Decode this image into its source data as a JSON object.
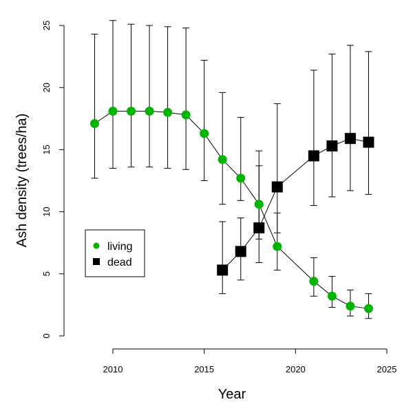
{
  "chart_data": {
    "type": "line",
    "title": "",
    "xlabel": "Year",
    "ylabel": "Ash density (trees/ha)",
    "xlim": [
      2008.5,
      2025
    ],
    "ylim": [
      0,
      25
    ],
    "xticks": [
      "2010",
      "2015",
      "2020",
      "2025"
    ],
    "yticks": [
      "0",
      "5",
      "10",
      "15",
      "20",
      "25"
    ],
    "grid": false,
    "legend_position": "left-middle",
    "series": [
      {
        "name": "living",
        "color": "#00b400",
        "marker": "circle",
        "x": [
          2009,
          2010,
          2011,
          2012,
          2013,
          2014,
          2015,
          2016,
          2017,
          2018,
          2019,
          2021,
          2022,
          2023,
          2024
        ],
        "y": [
          17.1,
          18.1,
          18.1,
          18.1,
          18.0,
          17.8,
          16.3,
          14.2,
          12.7,
          10.6,
          7.2,
          4.4,
          3.2,
          2.4,
          2.2
        ],
        "lower": [
          12.7,
          13.5,
          13.6,
          13.6,
          13.5,
          13.4,
          12.5,
          10.6,
          10.9,
          7.8,
          5.3,
          3.2,
          2.3,
          1.6,
          1.4
        ],
        "upper": [
          24.3,
          25.4,
          25.1,
          25.0,
          24.9,
          24.8,
          22.2,
          19.6,
          17.6,
          14.9,
          9.9,
          6.3,
          4.8,
          3.7,
          3.4
        ]
      },
      {
        "name": "dead",
        "color": "#000000",
        "marker": "square",
        "x": [
          2016,
          2017,
          2018,
          2019,
          2021,
          2022,
          2023,
          2024
        ],
        "y": [
          5.3,
          6.8,
          8.7,
          12.0,
          14.5,
          15.3,
          15.9,
          15.6
        ],
        "lower": [
          3.4,
          4.5,
          5.9,
          8.3,
          10.5,
          11.2,
          11.7,
          11.4
        ],
        "upper": [
          9.2,
          9.5,
          13.7,
          18.7,
          21.4,
          22.7,
          23.4,
          22.9
        ]
      }
    ]
  }
}
